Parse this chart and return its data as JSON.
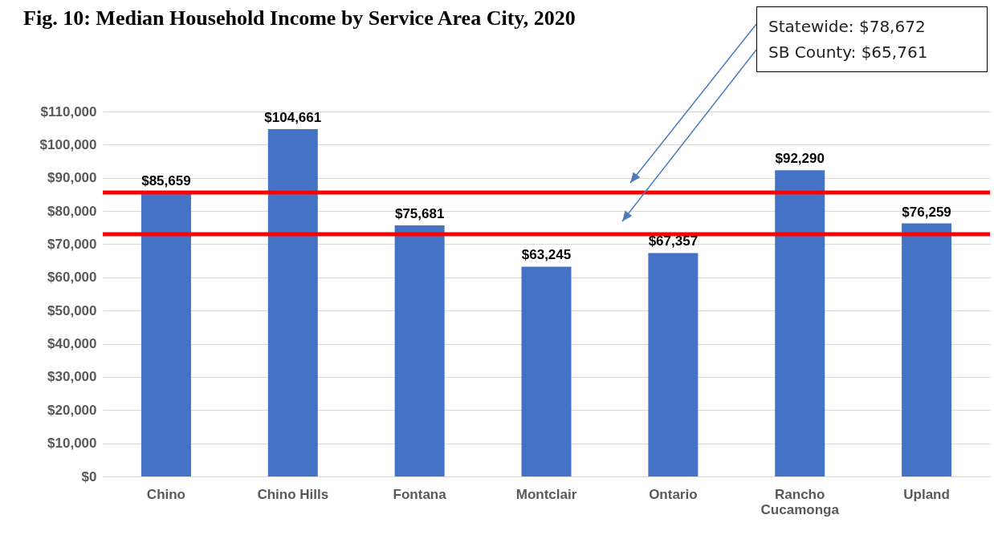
{
  "chart_data": {
    "type": "bar",
    "title": "Fig. 10:  Median Household Income by Service Area City, 2020",
    "categories": [
      "Chino",
      "Chino Hills",
      "Fontana",
      "Montclair",
      "Ontario",
      "Rancho Cucamonga",
      "Upland"
    ],
    "values": [
      85659,
      104661,
      75681,
      63245,
      67357,
      92290,
      76259
    ],
    "value_labels": [
      "$85,659",
      "$104,661",
      "$75,681",
      "$63,245",
      "$67,357",
      "$92,290",
      "$76,259"
    ],
    "color": "#4472c4",
    "ylim": [
      0,
      110000
    ],
    "yticks": [
      {
        "value": 0,
        "label": "$0"
      },
      {
        "value": 10000,
        "label": "$10,000"
      },
      {
        "value": 20000,
        "label": "$20,000"
      },
      {
        "value": 30000,
        "label": "$30,000"
      },
      {
        "value": 40000,
        "label": "$40,000"
      },
      {
        "value": 50000,
        "label": "$50,000"
      },
      {
        "value": 60000,
        "label": "$60,000"
      },
      {
        "value": 70000,
        "label": "$70,000"
      },
      {
        "value": 80000,
        "label": "$80,000"
      },
      {
        "value": 90000,
        "label": "$90,000"
      },
      {
        "value": 100000,
        "label": "$100,000"
      },
      {
        "value": 110000,
        "label": "$110,000"
      }
    ],
    "grid": "y",
    "ref_lines": [
      {
        "axis": "y",
        "value": 85600,
        "color": "#ff0000"
      },
      {
        "axis": "y",
        "value": 73000,
        "color": "#ff0000"
      }
    ],
    "annotations": [
      "Statewide:  $78,672",
      "SB County:  $65,761"
    ]
  }
}
